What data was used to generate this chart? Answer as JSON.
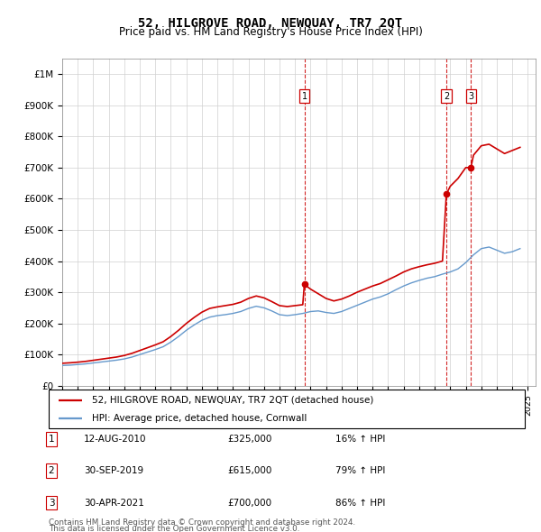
{
  "title": "52, HILGROVE ROAD, NEWQUAY, TR7 2QT",
  "subtitle": "Price paid vs. HM Land Registry's House Price Index (HPI)",
  "hpi_label": "HPI: Average price, detached house, Cornwall",
  "property_label": "52, HILGROVE ROAD, NEWQUAY, TR7 2QT (detached house)",
  "property_color": "#cc0000",
  "hpi_color": "#6699cc",
  "yticks": [
    0,
    100000,
    200000,
    300000,
    400000,
    500000,
    600000,
    700000,
    800000,
    900000,
    1000000
  ],
  "ytick_labels": [
    "£0",
    "£100K",
    "£200K",
    "£300K",
    "£400K",
    "£500K",
    "£600K",
    "£700K",
    "£800K",
    "£900K",
    "£1M"
  ],
  "xmin": 1995,
  "xmax": 2025.5,
  "ymin": 0,
  "ymax": 1050000,
  "transactions": [
    {
      "date": 2010.6,
      "price": 325000,
      "label": "1",
      "pct": "16%",
      "date_str": "12-AUG-2010"
    },
    {
      "date": 2019.75,
      "price": 615000,
      "label": "2",
      "pct": "79%",
      "date_str": "30-SEP-2019"
    },
    {
      "date": 2021.33,
      "price": 700000,
      "label": "3",
      "pct": "86%",
      "date_str": "30-APR-2021"
    }
  ],
  "footer_line1": "Contains HM Land Registry data © Crown copyright and database right 2024.",
  "footer_line2": "This data is licensed under the Open Government Licence v3.0.",
  "hpi_years": [
    1995.0,
    1995.5,
    1996.0,
    1996.5,
    1997.0,
    1997.5,
    1998.0,
    1998.5,
    1999.0,
    1999.5,
    2000.0,
    2000.5,
    2001.0,
    2001.5,
    2002.0,
    2002.5,
    2003.0,
    2003.5,
    2004.0,
    2004.5,
    2005.0,
    2005.5,
    2006.0,
    2006.5,
    2007.0,
    2007.5,
    2008.0,
    2008.5,
    2009.0,
    2009.5,
    2010.0,
    2010.5,
    2011.0,
    2011.5,
    2012.0,
    2012.5,
    2013.0,
    2013.5,
    2014.0,
    2014.5,
    2015.0,
    2015.5,
    2016.0,
    2016.5,
    2017.0,
    2017.5,
    2018.0,
    2018.5,
    2019.0,
    2019.5,
    2020.0,
    2020.5,
    2021.0,
    2021.5,
    2022.0,
    2022.5,
    2023.0,
    2023.5,
    2024.0,
    2024.5
  ],
  "hpi_values": [
    65000,
    66000,
    68000,
    70000,
    73000,
    76000,
    79000,
    82000,
    86000,
    92000,
    100000,
    108000,
    116000,
    125000,
    140000,
    158000,
    178000,
    195000,
    210000,
    220000,
    225000,
    228000,
    232000,
    238000,
    248000,
    255000,
    250000,
    240000,
    228000,
    225000,
    228000,
    232000,
    238000,
    240000,
    235000,
    232000,
    238000,
    248000,
    258000,
    268000,
    278000,
    285000,
    295000,
    308000,
    320000,
    330000,
    338000,
    345000,
    350000,
    358000,
    365000,
    375000,
    395000,
    420000,
    440000,
    445000,
    435000,
    425000,
    430000,
    440000
  ],
  "prop_years": [
    1995.0,
    1995.5,
    1996.0,
    1996.5,
    1997.0,
    1997.5,
    1998.0,
    1998.5,
    1999.0,
    1999.5,
    2000.0,
    2000.5,
    2001.0,
    2001.5,
    2002.0,
    2002.5,
    2003.0,
    2003.5,
    2004.0,
    2004.5,
    2005.0,
    2005.5,
    2006.0,
    2006.5,
    2007.0,
    2007.5,
    2008.0,
    2008.5,
    2009.0,
    2009.5,
    2010.0,
    2010.5,
    2010.6,
    2011.0,
    2011.5,
    2012.0,
    2012.5,
    2013.0,
    2013.5,
    2014.0,
    2014.5,
    2015.0,
    2015.5,
    2016.0,
    2016.5,
    2017.0,
    2017.5,
    2018.0,
    2018.5,
    2019.0,
    2019.5,
    2019.75,
    2020.0,
    2020.5,
    2021.0,
    2021.33,
    2021.5,
    2022.0,
    2022.5,
    2023.0,
    2023.5,
    2024.0,
    2024.5
  ],
  "prop_values": [
    72000,
    73500,
    75500,
    78000,
    81500,
    85000,
    88500,
    92000,
    97000,
    104000,
    113000,
    122000,
    131000,
    141000,
    158000,
    178000,
    200000,
    219000,
    236000,
    248000,
    253000,
    257000,
    261000,
    268000,
    280000,
    288000,
    282000,
    270000,
    257000,
    254000,
    257000,
    260000,
    325000,
    310000,
    295000,
    280000,
    272000,
    278000,
    288000,
    300000,
    310000,
    320000,
    328000,
    340000,
    352000,
    365000,
    375000,
    382000,
    388000,
    393000,
    400000,
    615000,
    640000,
    665000,
    700000,
    700000,
    740000,
    770000,
    775000,
    760000,
    745000,
    755000,
    765000
  ]
}
